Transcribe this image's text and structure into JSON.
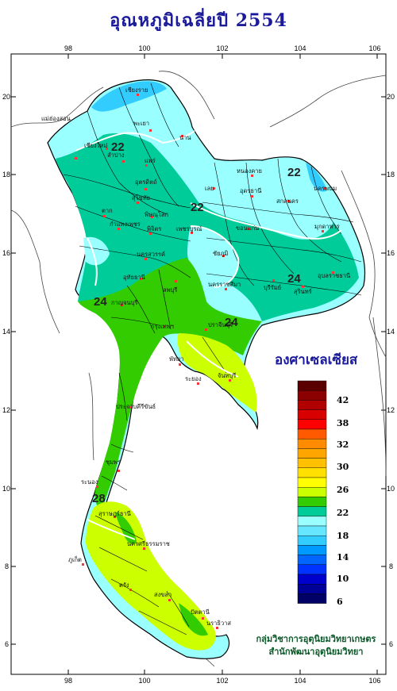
{
  "title": "อุณหภูมิเฉลี่ยปี  2554",
  "unit_label": "องศาเซลเซียส",
  "credit": [
    "กลุ่มวิชาการอุตุนิยมวิทยาเกษตร",
    "สำนักพัฒนาอุตุนิยมวิทยา"
  ],
  "axes": {
    "x_ticks": [
      "98",
      "100",
      "102",
      "104",
      "106"
    ],
    "y_ticks": [
      "20",
      "18",
      "16",
      "14",
      "12",
      "10",
      "8",
      "6"
    ]
  },
  "legend": {
    "labels": [
      "42",
      "38",
      "32",
      "30",
      "26",
      "22",
      "18",
      "14",
      "10",
      "6"
    ],
    "colors": [
      "#5a0000",
      "#8b0000",
      "#b00000",
      "#d80000",
      "#ff0000",
      "#ff5a00",
      "#ff8c00",
      "#ffa500",
      "#ffc000",
      "#ffe000",
      "#ffff00",
      "#ccff00",
      "#33cc00",
      "#00cc99",
      "#99ffff",
      "#66e6ff",
      "#33ccff",
      "#0099ff",
      "#0066ff",
      "#0033ff",
      "#0000cc",
      "#000099",
      "#000066"
    ]
  },
  "isotherm_labels": [
    "22",
    "22",
    "22",
    "24",
    "24",
    "24",
    "28"
  ],
  "places": [
    "เชียงราย",
    "แม่ฮ่องสอน",
    "เชียงใหม่",
    "พะเยา",
    "น่าน",
    "ลำปาง",
    "แพร่",
    "อุตรดิตถ์",
    "ตาก",
    "สุโขทัย",
    "พิษณุโลก",
    "กำแพงเพชร",
    "พิจิตร",
    "เพชรบูรณ์",
    "เลย",
    "หนองคาย",
    "อุดรธานี",
    "สกลนคร",
    "นครพนม",
    "ขอนแก่น",
    "มุกดาหาร",
    "ชัยภูมิ",
    "นครสวรรค์",
    "อุทัยธานี",
    "ลพบุรี",
    "นครราชสีมา",
    "บุรีรัมย์",
    "สุรินทร์",
    "อุบลราชธานี",
    "กาญจนบุรี",
    "กรุงเทพฯ",
    "ปราจีนบุรี",
    "พัทยา",
    "ระยอง",
    "จันทบุรี",
    "ประจวบคีรีขันธ์",
    "ชุมพร",
    "ระนอง",
    "สุราษฎร์ธานี",
    "ภูเก็ต",
    "นครศรีธรรมราช",
    "ตรัง",
    "สงขลา",
    "ปัตตานี",
    "นราธิวาส"
  ]
}
